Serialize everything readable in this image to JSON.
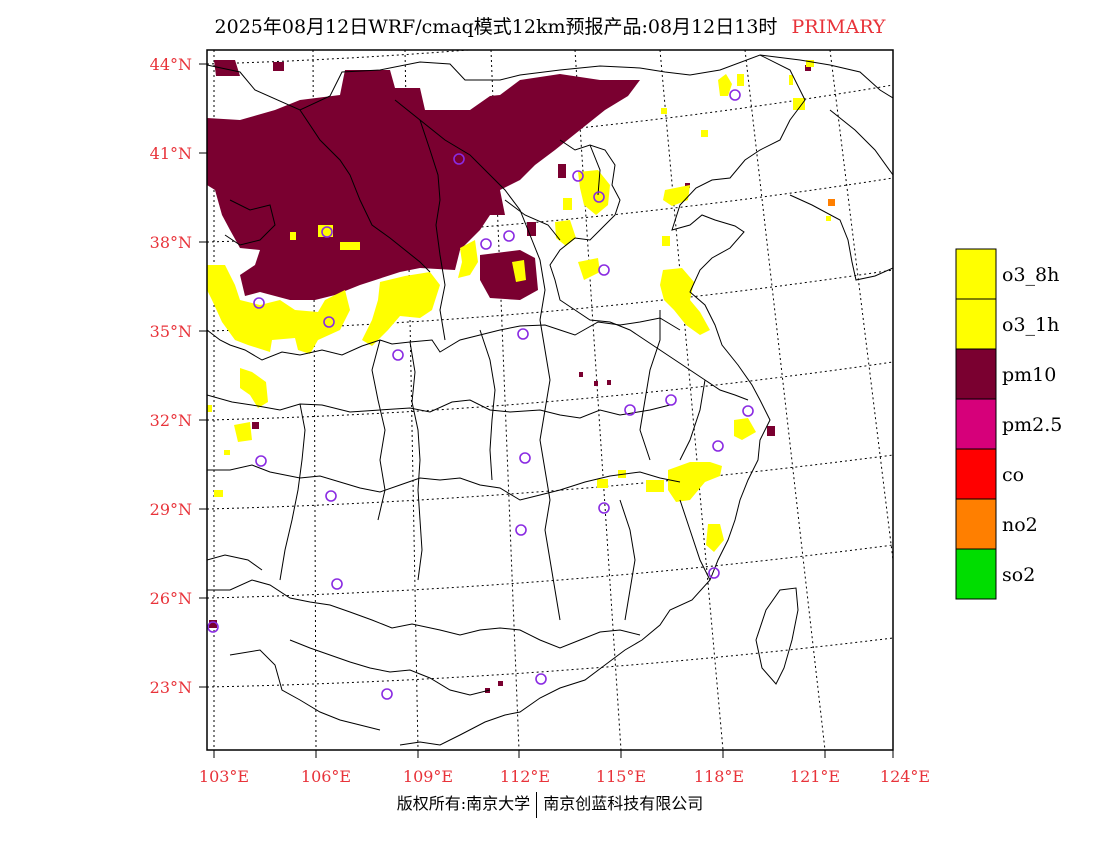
{
  "title": {
    "main": "2025年08月12日WRF/cmaq模式12km预报产品:08月12日13时",
    "tag": "PRIMARY"
  },
  "axes": {
    "lat_labels": [
      "23°N",
      "26°N",
      "29°N",
      "32°N",
      "35°N",
      "38°N",
      "41°N",
      "44°N"
    ],
    "lon_labels": [
      "103°E",
      "106°E",
      "109°E",
      "112°E",
      "115°E",
      "118°E",
      "121°E",
      "124°E"
    ]
  },
  "legend": {
    "items": [
      {
        "label": "o3_8h",
        "color": "#ffff00"
      },
      {
        "label": "o3_1h",
        "color": "#ffff00"
      },
      {
        "label": "pm10",
        "color": "#7a0030"
      },
      {
        "label": "pm2.5",
        "color": "#d6007a"
      },
      {
        "label": "co",
        "color": "#ff0000"
      },
      {
        "label": "no2",
        "color": "#ff7f00"
      },
      {
        "label": "so2",
        "color": "#00dd00"
      }
    ]
  },
  "colors": {
    "pm10": "#7a0030",
    "o3": "#ffff00",
    "no2": "#ff7f00",
    "station": "#8a2be2",
    "label": "#e8333a"
  },
  "footer": {
    "left": "版权所有:南京大学",
    "right": "南京创蓝科技有限公司"
  }
}
